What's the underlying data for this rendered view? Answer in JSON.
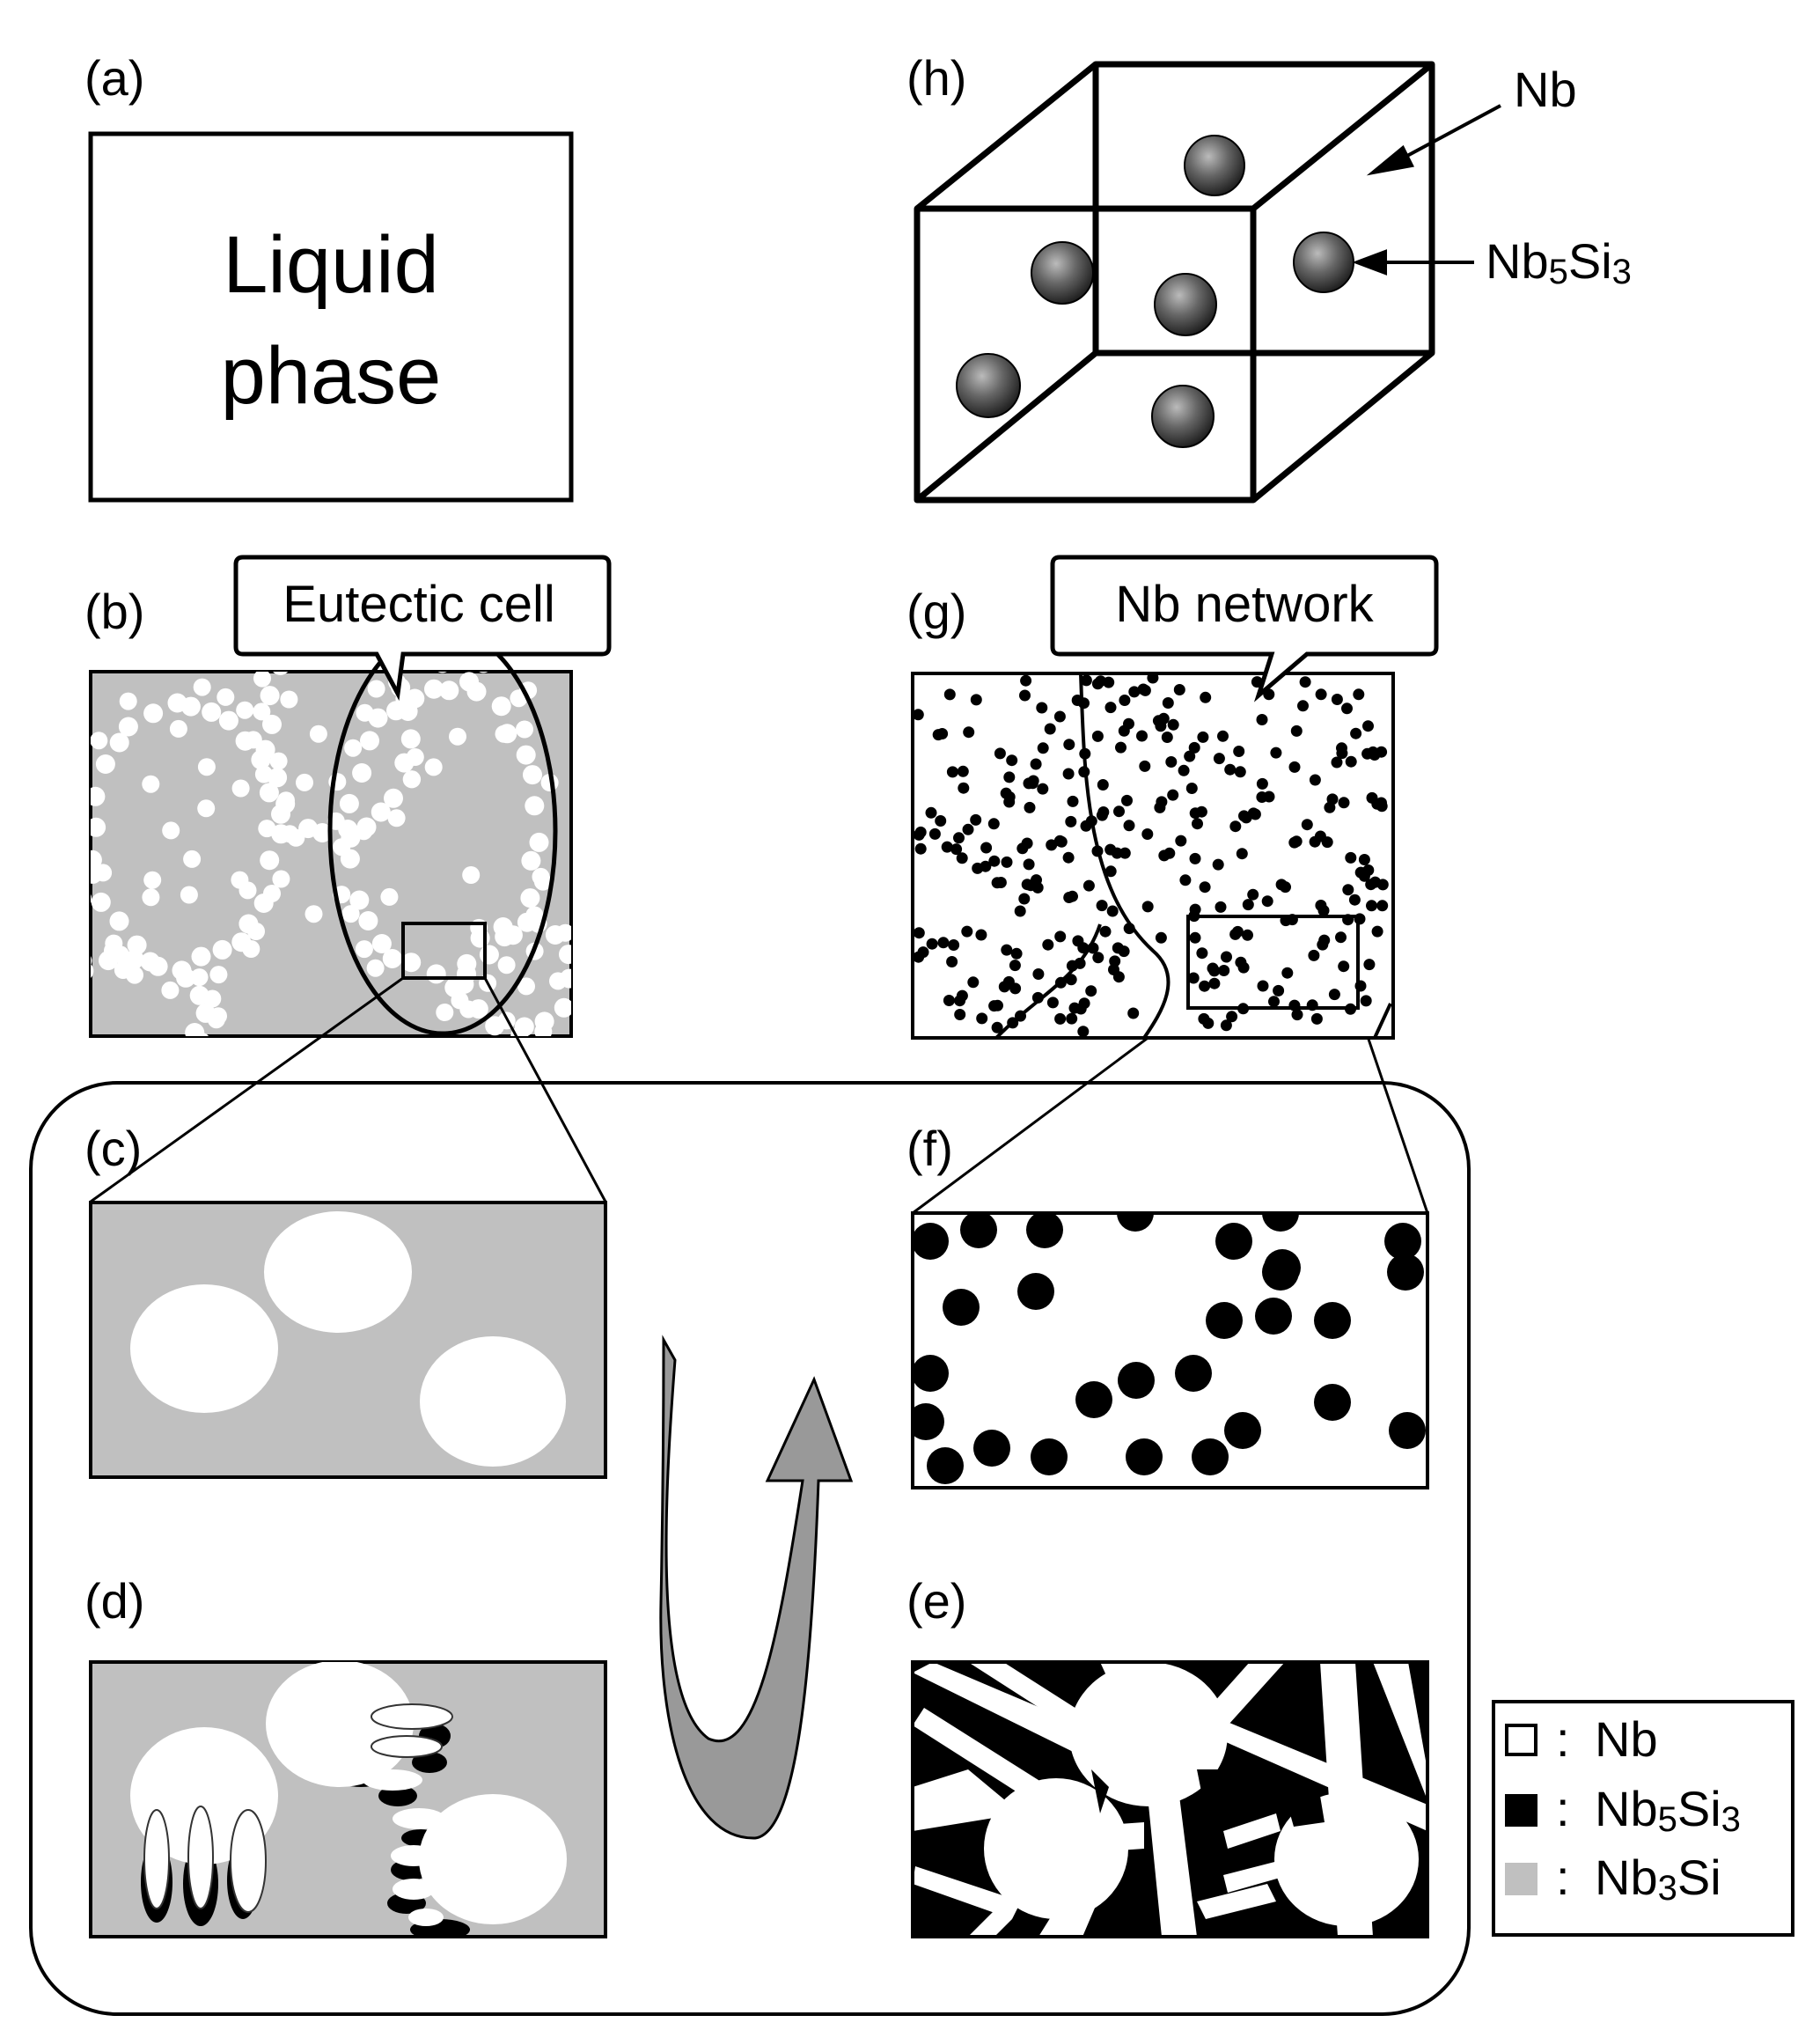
{
  "panels": {
    "a": {
      "label": "(a)",
      "line1": "Liquid",
      "line2": "phase"
    },
    "b": {
      "label": "(b)",
      "callout": "Eutectic cell"
    },
    "c": {
      "label": "(c)"
    },
    "d": {
      "label": "(d)"
    },
    "e": {
      "label": "(e)"
    },
    "f": {
      "label": "(f)"
    },
    "g": {
      "label": "(g)",
      "callout": "Nb network"
    },
    "h": {
      "label": "(h)",
      "arrow_nb": "Nb",
      "arrow_nb5si3_main": "Nb",
      "arrow_nb5si3_sub1": "5",
      "arrow_nb5si3_mid": "Si",
      "arrow_nb5si3_sub2": "3"
    }
  },
  "legend": {
    "separator": ":",
    "items": [
      {
        "main": "Nb",
        "sub1": "",
        "mid": "",
        "sub2": "",
        "color": "#ffffff"
      },
      {
        "main": "Nb",
        "sub1": "5",
        "mid": "Si",
        "sub2": "3",
        "color": "#000000"
      },
      {
        "main": "Nb",
        "sub1": "3",
        "mid": "Si",
        "sub2": "",
        "color": "#c0c0c0"
      }
    ]
  },
  "colors": {
    "nb3si_gray": "#c0c0c0",
    "arrow_gray": "#999999",
    "sphere": "#555555"
  }
}
